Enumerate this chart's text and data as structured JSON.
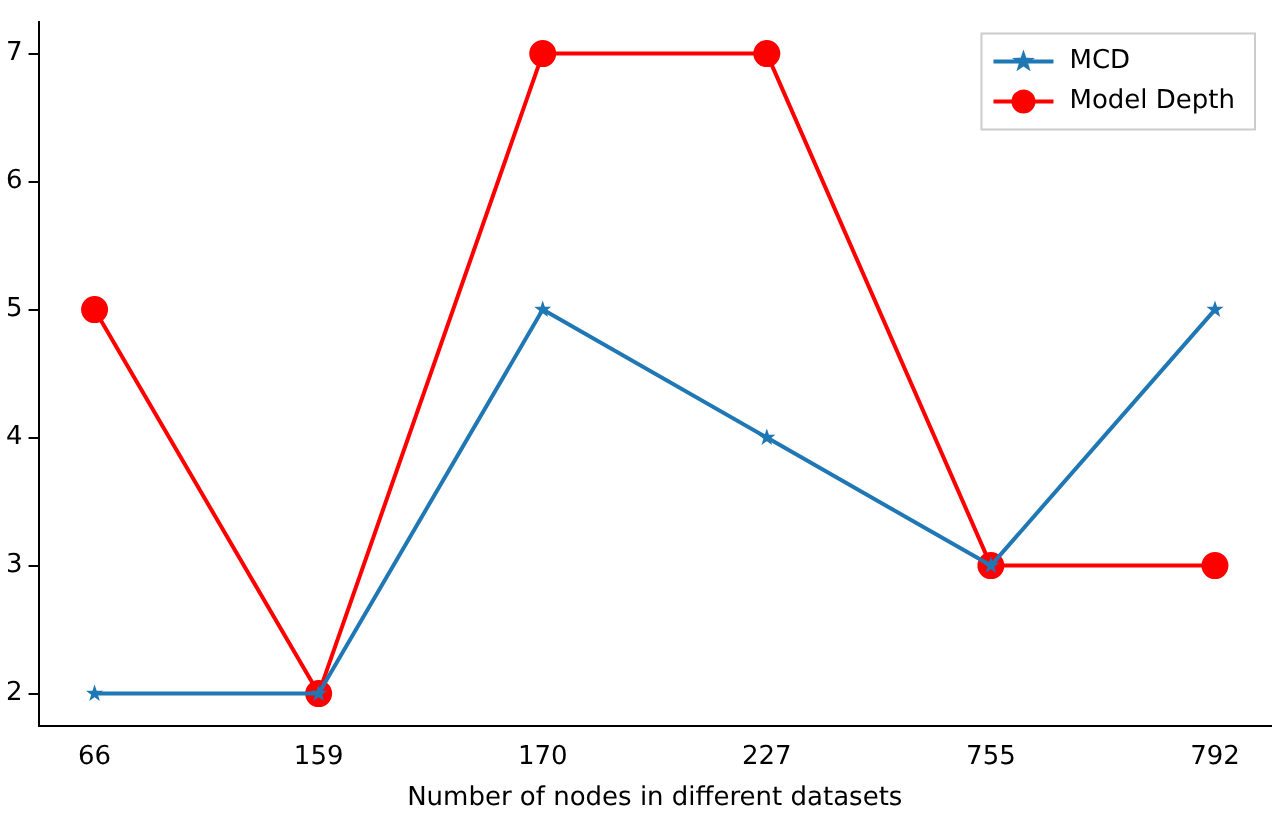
{
  "chart_data": {
    "type": "line",
    "xlabel": "Number of nodes in different datasets",
    "categories": [
      "66",
      "159",
      "170",
      "227",
      "755",
      "792"
    ],
    "series": [
      {
        "name": "MCD",
        "color": "#1f77b4",
        "marker": "star",
        "values": [
          2,
          2,
          5,
          4,
          3,
          5
        ]
      },
      {
        "name": "Model Depth",
        "color": "#ff0000",
        "marker": "circle",
        "values": [
          5,
          2,
          7,
          7,
          3,
          3
        ]
      }
    ],
    "ylim": [
      1.75,
      7.25
    ],
    "yticks": [
      2,
      3,
      4,
      5,
      6,
      7
    ],
    "grid": false,
    "legend": "top right",
    "line_style": "solid"
  }
}
